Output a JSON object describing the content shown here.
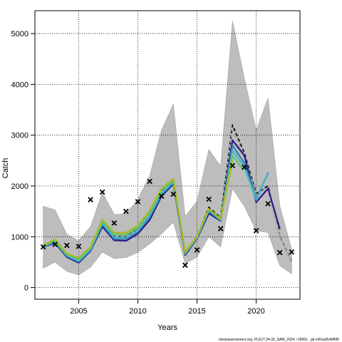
{
  "chart_data": {
    "type": "line",
    "xlabel": "Years",
    "ylabel": "Catch",
    "xlim": [
      2001.3,
      2023.7
    ],
    "ylim": [
      -230,
      5450
    ],
    "x_ticks": [
      2005,
      2010,
      2015,
      2020
    ],
    "y_ticks": [
      0,
      1000,
      2000,
      3000,
      4000,
      5000
    ],
    "grid": true,
    "band": {
      "x": [
        2002,
        2003,
        2004,
        2005,
        2006,
        2007,
        2008,
        2009,
        2010,
        2011,
        2012,
        2013,
        2014,
        2015,
        2016,
        2017,
        2018,
        2019,
        2020,
        2021,
        2022,
        2023
      ],
      "upper": [
        1600,
        1530,
        1050,
        920,
        1200,
        1870,
        1440,
        1450,
        1740,
        2200,
        3100,
        3610,
        1400,
        1700,
        2720,
        2390,
        5250,
        4120,
        3100,
        3730,
        1600,
        750
      ],
      "lower": [
        380,
        500,
        320,
        250,
        400,
        700,
        570,
        590,
        690,
        860,
        1060,
        1290,
        470,
        600,
        1000,
        800,
        1950,
        1600,
        1120,
        1080,
        430,
        270
      ]
    },
    "series": [
      {
        "color": "#1b1b1b",
        "dashed": true,
        "x": [
          2002,
          2003,
          2004,
          2005,
          2006,
          2007,
          2008,
          2009,
          2010,
          2011,
          2012,
          2013,
          2014,
          2015,
          2016,
          2017,
          2018,
          2019,
          2020,
          2021,
          2022,
          2023
        ],
        "values": [
          800,
          930,
          650,
          550,
          780,
          1300,
          1000,
          1000,
          1150,
          1450,
          1900,
          2100,
          690,
          1000,
          1580,
          1370,
          3200,
          2650,
          1850,
          2000,
          1000,
          500
        ]
      },
      {
        "color": "#a9a9a9",
        "dashed": true,
        "x": [
          2002,
          2003,
          2004,
          2005,
          2006,
          2007,
          2008,
          2009,
          2010,
          2011,
          2012,
          2013,
          2014,
          2015,
          2016,
          2017,
          2018,
          2019,
          2020,
          2021,
          2022,
          2023
        ],
        "values": [
          800,
          920,
          640,
          540,
          770,
          1280,
          990,
          990,
          1140,
          1440,
          1880,
          2080,
          680,
          990,
          1560,
          1350,
          3100,
          2580,
          1800,
          1950,
          980,
          490
        ]
      },
      {
        "color": "#2a1a8a",
        "dashed": false,
        "x": [
          2002,
          2003,
          2004,
          2005,
          2006,
          2007,
          2008,
          2009,
          2010,
          2011,
          2012,
          2013,
          2014,
          2015,
          2016,
          2017,
          2018,
          2019,
          2020,
          2021,
          2022
        ],
        "values": [
          800,
          880,
          600,
          490,
          720,
          1200,
          930,
          920,
          1060,
          1330,
          1800,
          2040,
          640,
          960,
          1460,
          1310,
          2900,
          2600,
          1680,
          1950,
          1150
        ]
      },
      {
        "color": "#2f7fb5",
        "dashed": false,
        "x": [
          2002,
          2003,
          2004,
          2005,
          2006,
          2007,
          2008,
          2009,
          2010,
          2011,
          2012,
          2013,
          2014,
          2015,
          2016,
          2017,
          2018,
          2019,
          2020,
          2021
        ],
        "values": [
          800,
          900,
          620,
          510,
          730,
          1240,
          960,
          960,
          1100,
          1390,
          1830,
          2060,
          660,
          970,
          1500,
          1320,
          2800,
          2450,
          1750,
          2250
        ]
      },
      {
        "color": "#3fb8c8",
        "dashed": false,
        "x": [
          2002,
          2003,
          2004,
          2005,
          2006,
          2007,
          2008,
          2009,
          2010,
          2011,
          2012,
          2013,
          2014,
          2015,
          2016,
          2017,
          2018,
          2019,
          2020,
          2021
        ],
        "values": [
          810,
          910,
          630,
          520,
          750,
          1270,
          980,
          980,
          1120,
          1420,
          1860,
          2080,
          670,
          985,
          1520,
          1330,
          2700,
          2380,
          1720,
          2270
        ]
      },
      {
        "color": "#5fc56e",
        "dashed": false,
        "x": [
          2002,
          2003,
          2004,
          2005,
          2006,
          2007,
          2008,
          2009,
          2010,
          2011,
          2012,
          2013,
          2014,
          2015,
          2016,
          2017,
          2018,
          2019
        ],
        "values": [
          820,
          930,
          650,
          560,
          780,
          1310,
          1040,
          1040,
          1180,
          1480,
          1920,
          2110,
          680,
          1000,
          1540,
          1340,
          2600,
          2300
        ]
      },
      {
        "color": "#a8b820",
        "dashed": false,
        "x": [
          2002,
          2003,
          2004,
          2005,
          2006,
          2007,
          2008,
          2009,
          2010,
          2011,
          2012,
          2013,
          2014,
          2015,
          2016,
          2017,
          2018
        ],
        "values": [
          830,
          950,
          670,
          580,
          800,
          1340,
          1080,
          1080,
          1220,
          1510,
          1950,
          2140,
          700,
          1010,
          1550,
          1350,
          2500
        ]
      }
    ],
    "observed": {
      "x": [
        2002,
        2003,
        2004,
        2005,
        2006,
        2007,
        2008,
        2009,
        2010,
        2011,
        2012,
        2013,
        2014,
        2015,
        2016,
        2017,
        2018,
        2019,
        2020,
        2021,
        2022,
        2023
      ],
      "values": [
        800,
        850,
        830,
        810,
        1730,
        1880,
        1270,
        1500,
        1690,
        2090,
        1800,
        1840,
        440,
        740,
        1740,
        1160,
        2400,
        2370,
        1120,
        1650,
        690,
        700
      ]
    },
    "footer": "stockassessment.org, PLE27.24-32_SAM_2024, r18061 , git e36ea2b49f6f0"
  }
}
